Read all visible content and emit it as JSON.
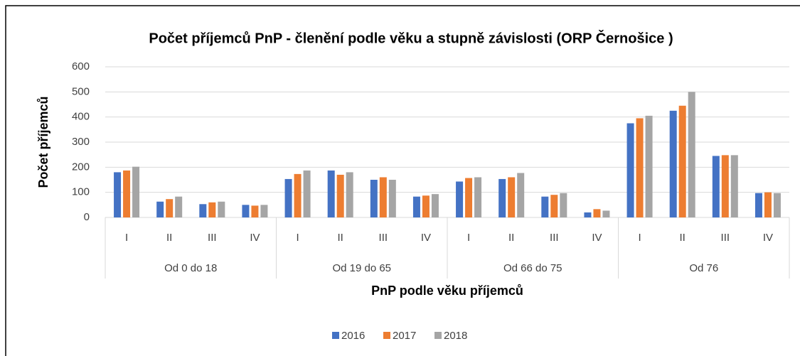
{
  "chart_data": {
    "type": "bar",
    "title": "Počet příjemců PnP - členění podle věku a stupně závislosti (ORP Černošice )",
    "x_label": "PnP podle věku příjemců",
    "y_label": "Počet příjemců",
    "groups": [
      "Od 0 do 18",
      "Od 19 do 65",
      "Od 66 do 75",
      "Od 76"
    ],
    "categories": [
      "I",
      "II",
      "III",
      "IV",
      "I",
      "II",
      "III",
      "IV",
      "I",
      "II",
      "III",
      "IV",
      "I",
      "II",
      "III",
      "IV"
    ],
    "series": [
      {
        "name": "2016",
        "color": "#4472c4",
        "values": [
          180,
          63,
          53,
          50,
          153,
          187,
          150,
          83,
          143,
          153,
          83,
          20,
          375,
          425,
          245,
          97
        ]
      },
      {
        "name": "2017",
        "color": "#ed7d31",
        "values": [
          187,
          73,
          60,
          47,
          173,
          170,
          160,
          87,
          157,
          160,
          90,
          33,
          395,
          445,
          248,
          100
        ]
      },
      {
        "name": "2018",
        "color": "#a5a5a5",
        "values": [
          202,
          83,
          63,
          50,
          187,
          180,
          150,
          93,
          160,
          177,
          97,
          27,
          405,
          500,
          248,
          97
        ]
      }
    ],
    "ylim": [
      0,
      600
    ],
    "yticks": [
      0,
      100,
      200,
      300,
      400,
      500,
      600
    ],
    "grid": true,
    "legend": "bottom"
  }
}
